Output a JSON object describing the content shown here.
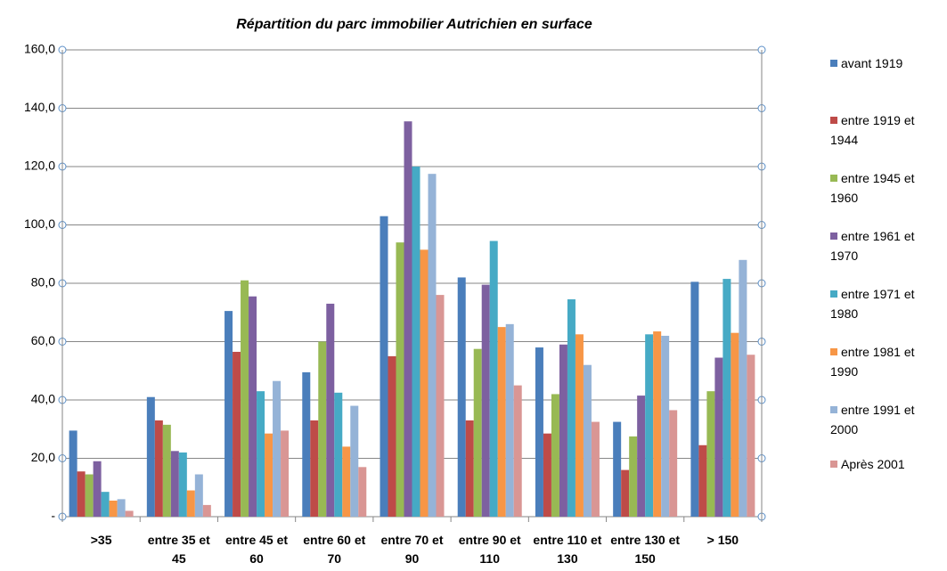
{
  "chart_data": {
    "type": "bar",
    "title": "Répartition du parc immobilier Autrichien en surface",
    "categories": [
      ">35",
      "entre 35 et 45",
      "entre 45 et 60",
      "entre 60 et 70",
      "entre 70 et 90",
      "entre 90 et 110",
      "entre 110 et 130",
      "entre 130 et 150",
      "> 150"
    ],
    "series": [
      {
        "name": "avant 1919",
        "color": "#4a7ebb",
        "values": [
          29.5,
          41,
          70.5,
          49.5,
          103,
          82,
          58,
          32.5,
          80.5
        ]
      },
      {
        "name": "entre 1919 et 1944",
        "color": "#be4b48",
        "values": [
          15.5,
          33,
          56.5,
          33,
          55,
          33,
          28.5,
          16,
          24.5
        ]
      },
      {
        "name": "entre 1945 et 1960",
        "color": "#98b954",
        "values": [
          14.5,
          31.5,
          81,
          60,
          94,
          57.5,
          42,
          27.5,
          43
        ]
      },
      {
        "name": "entre 1961 et 1970",
        "color": "#7d60a0",
        "values": [
          19,
          22.5,
          75.5,
          73,
          135.5,
          79.5,
          59,
          41.5,
          54.5
        ]
      },
      {
        "name": "entre 1971 et 1980",
        "color": "#46aac5",
        "values": [
          8.5,
          22,
          43,
          42.5,
          120,
          94.5,
          74.5,
          62.5,
          81.5
        ]
      },
      {
        "name": "entre 1981 et 1990",
        "color": "#f79646",
        "values": [
          5.5,
          9,
          28.5,
          24,
          91.5,
          65,
          62.5,
          63.5,
          63
        ]
      },
      {
        "name": "entre 1991 et 2000",
        "color": "#95b3d7",
        "values": [
          6,
          14.5,
          46.5,
          38,
          117.5,
          66,
          52,
          62,
          88
        ]
      },
      {
        "name": "Après 2001",
        "color": "#d99694",
        "values": [
          2,
          4,
          29.5,
          17,
          76,
          45,
          32.5,
          36.5,
          55.5
        ]
      }
    ],
    "ylim": [
      0,
      160
    ],
    "yticks": [
      {
        "value": 0,
        "label": "-"
      },
      {
        "value": 20,
        "label": "20,0"
      },
      {
        "value": 40,
        "label": "40,0"
      },
      {
        "value": 60,
        "label": "60,0"
      },
      {
        "value": 80,
        "label": "80,0"
      },
      {
        "value": 100,
        "label": "100,0"
      },
      {
        "value": 120,
        "label": "120,0"
      },
      {
        "value": 140,
        "label": "140,0"
      },
      {
        "value": 160,
        "label": "160,0"
      }
    ],
    "grid": true
  }
}
